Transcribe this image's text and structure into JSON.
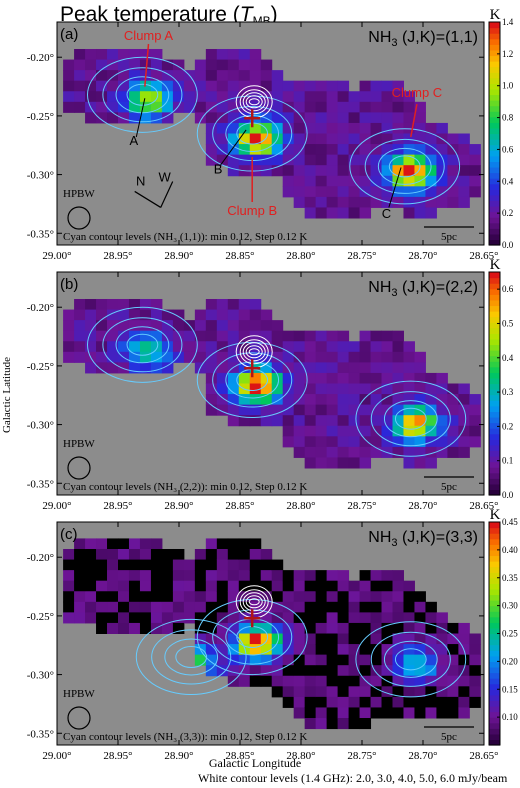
{
  "figure": {
    "title_main": "Peak temperature (",
    "title_sym": "T",
    "title_sub": "MB",
    "title_close": ")",
    "ylabel": "Galactic Latitude",
    "xlabel": "Galactic Longitude",
    "white_contour_note": "White contour levels (1.4 GHz): 2.0, 3.0, 4.0, 5.0, 6.0 mJy/beam",
    "colorbar_unit": "K",
    "hpbw_label": "HPBW",
    "scalebar_label": "5pc",
    "background_color": "#8c8c8c",
    "contour_color": "#66ccff",
    "marker_color": "#b01515",
    "x_ticks": [
      "29.00°",
      "28.95°",
      "28.90°",
      "28.85°",
      "28.80°",
      "28.75°",
      "28.70°",
      "28.65°"
    ],
    "y_ticks": [
      "-0.20°",
      "-0.25°",
      "-0.30°",
      "-0.35°"
    ]
  },
  "chart_data": [
    {
      "type": "heatmap",
      "panel": "(a)",
      "molecule": "NH",
      "sub": "3",
      "transition": " (J,K)=(1,1)",
      "contour_note": "Cyan contour levels (NH₃ (1,1)): min 0.12, Step 0.12 K",
      "colorbar": {
        "min": 0,
        "max": 1.4,
        "ticks": [
          "0.0",
          "0.2",
          "0.4",
          "0.6",
          "0.8",
          "1.0",
          "1.2",
          "1.4"
        ]
      },
      "annotations": [
        "Clump A",
        "Clump B",
        "Clump C",
        "A",
        "B",
        "C",
        "N",
        "W"
      ],
      "xlim": [
        29.0,
        28.65
      ],
      "ylim": [
        -0.36,
        -0.17
      ],
      "peaks": [
        {
          "l": 28.93,
          "b": -0.232,
          "value": 0.9
        },
        {
          "l": 28.84,
          "b": -0.265,
          "value": 1.25
        },
        {
          "l": 28.715,
          "b": -0.293,
          "value": 1.35
        }
      ]
    },
    {
      "type": "heatmap",
      "panel": "(b)",
      "molecule": "NH",
      "sub": "3",
      "transition": " (J,K)=(2,2)",
      "contour_note": "Cyan contour levels (NH₃ (2,2)): min 0.12, Step 0.12 K",
      "colorbar": {
        "min": 0,
        "max": 0.65,
        "ticks": [
          "0.0",
          "0.1",
          "0.2",
          "0.3",
          "0.4",
          "0.5",
          "0.6"
        ]
      },
      "annotations": [],
      "xlim": [
        29.0,
        28.65
      ],
      "ylim": [
        -0.36,
        -0.17
      ],
      "peaks": [
        {
          "l": 28.93,
          "b": -0.232,
          "value": 0.3
        },
        {
          "l": 28.84,
          "b": -0.262,
          "value": 0.62
        },
        {
          "l": 28.71,
          "b": -0.295,
          "value": 0.5
        }
      ]
    },
    {
      "type": "heatmap",
      "panel": "(c)",
      "molecule": "NH",
      "sub": "3",
      "transition": " (J,K)=(3,3)",
      "contour_note": "Cyan contour levels (NH₃ (3,3)): min 0.12, Step 0.12 K",
      "colorbar": {
        "min": 0.05,
        "max": 0.45,
        "ticks": [
          "0.10",
          "0.15",
          "0.20",
          "0.25",
          "0.30",
          "0.35",
          "0.40",
          "0.45"
        ]
      },
      "annotations": [],
      "xlim": [
        29.0,
        28.65
      ],
      "ylim": [
        -0.36,
        -0.17
      ],
      "peaks": [
        {
          "l": 28.84,
          "b": -0.268,
          "value": 0.44
        },
        {
          "l": 28.89,
          "b": -0.285,
          "value": 0.22
        },
        {
          "l": 28.71,
          "b": -0.287,
          "value": 0.2
        }
      ]
    }
  ]
}
